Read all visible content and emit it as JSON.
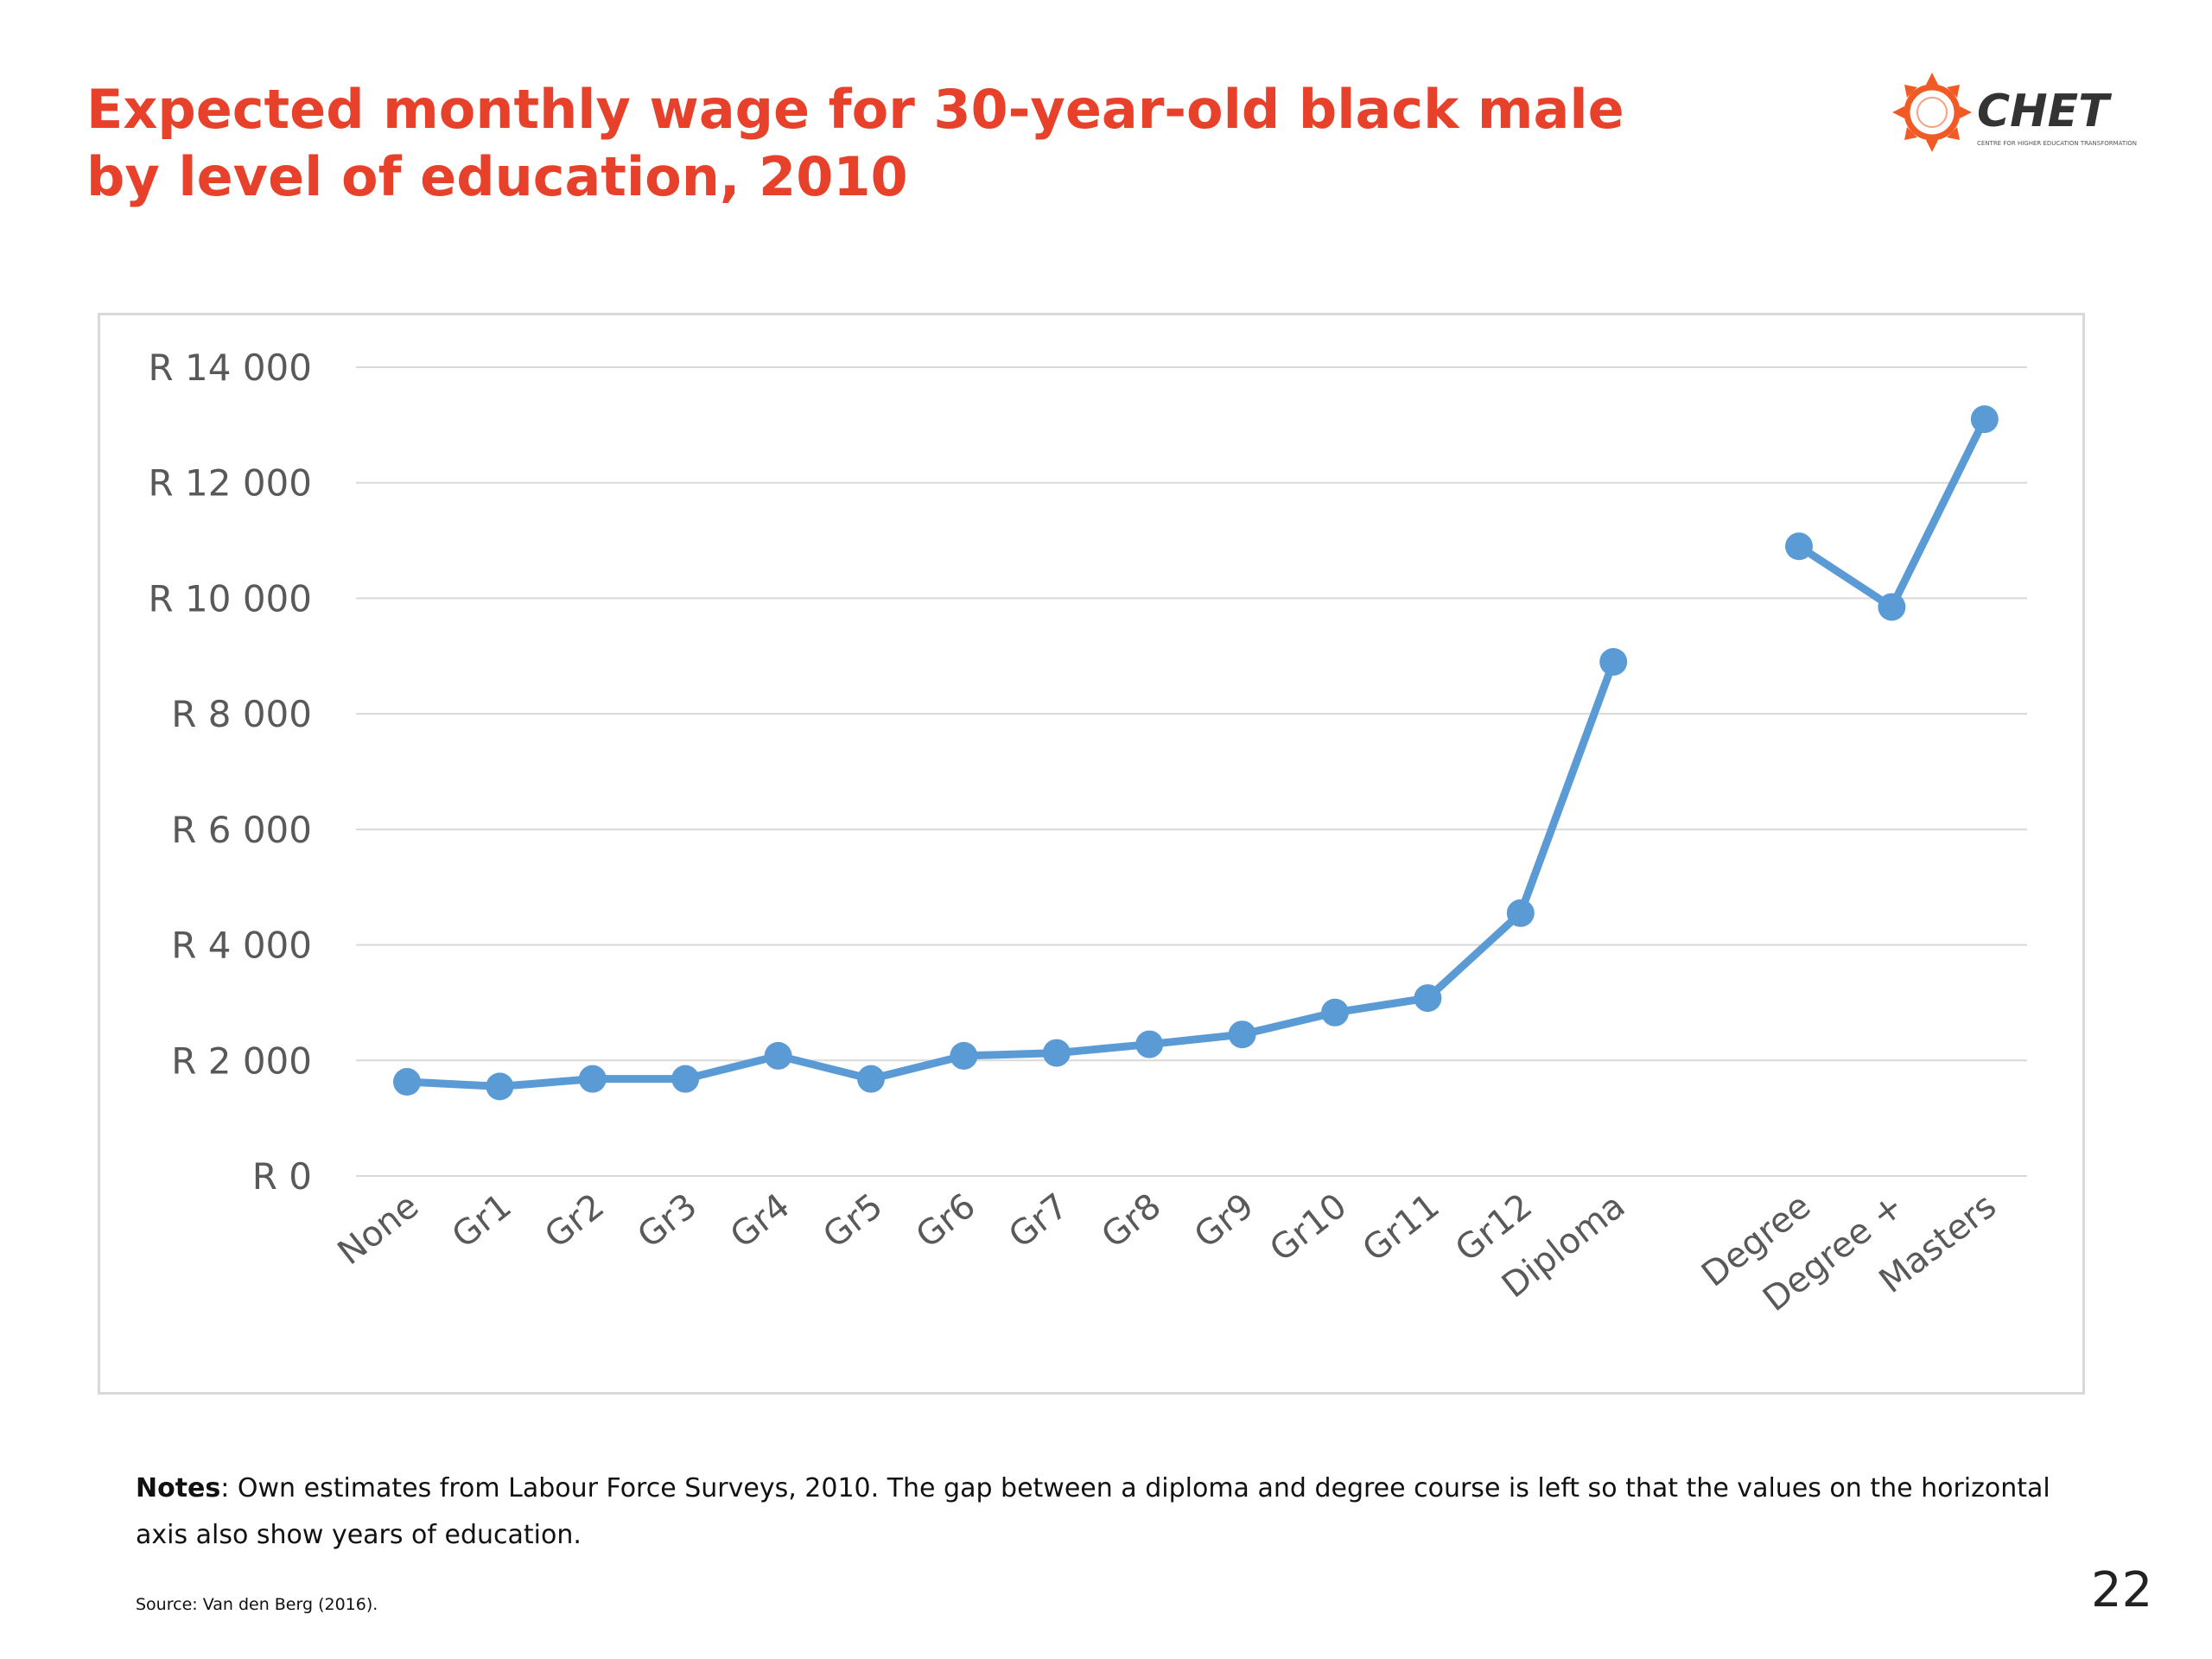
{
  "slide": {
    "title_line1": "Expected monthly wage for 30-year-old black male",
    "title_line2": "by level of education, 2010",
    "title_color": "#e8412b",
    "page_number": "22",
    "notes_label": "Notes",
    "notes_text": ": Own estimates from Labour Force Surveys, 2010. The gap between a diploma and degree course is left so that the values on the horizontal axis also show years of education.",
    "source": "Source: Van den Berg (2016)."
  },
  "logo": {
    "name": "CHET",
    "subtitle": "CENTRE FOR HIGHER EDUCATION TRANSFORMATION",
    "icon": "sun-gear-icon",
    "colors": {
      "orange": "#f15a24",
      "dark": "#333333"
    }
  },
  "chart_data": {
    "type": "line",
    "title": "",
    "xlabel": "",
    "ylabel": "",
    "ylim": [
      0,
      14000
    ],
    "yticks": [
      {
        "value": 0,
        "label": "R 0"
      },
      {
        "value": 2000,
        "label": "R 2 000"
      },
      {
        "value": 4000,
        "label": "R 4 000"
      },
      {
        "value": 6000,
        "label": "R 6 000"
      },
      {
        "value": 8000,
        "label": "R 8 000"
      },
      {
        "value": 10000,
        "label": "R 10 000"
      },
      {
        "value": 12000,
        "label": "R 12 000"
      },
      {
        "value": 14000,
        "label": "R 14 000"
      }
    ],
    "grid": true,
    "legend": "none",
    "series_color": "#5b9bd5",
    "categories": [
      "None",
      "Gr1",
      "Gr2",
      "Gr3",
      "Gr4",
      "Gr5",
      "Gr6",
      "Gr7",
      "Gr8",
      "Gr9",
      "Gr10",
      "Gr11",
      "Gr12",
      "Diploma",
      "",
      "Degree",
      "Degree +",
      "Masters"
    ],
    "series": [
      {
        "values": [
          1630,
          1550,
          1680,
          1680,
          2080,
          1680,
          2080,
          2130,
          2280,
          2450,
          2830,
          3080,
          4550,
          8900,
          null,
          10900,
          9850,
          13100
        ]
      }
    ]
  }
}
